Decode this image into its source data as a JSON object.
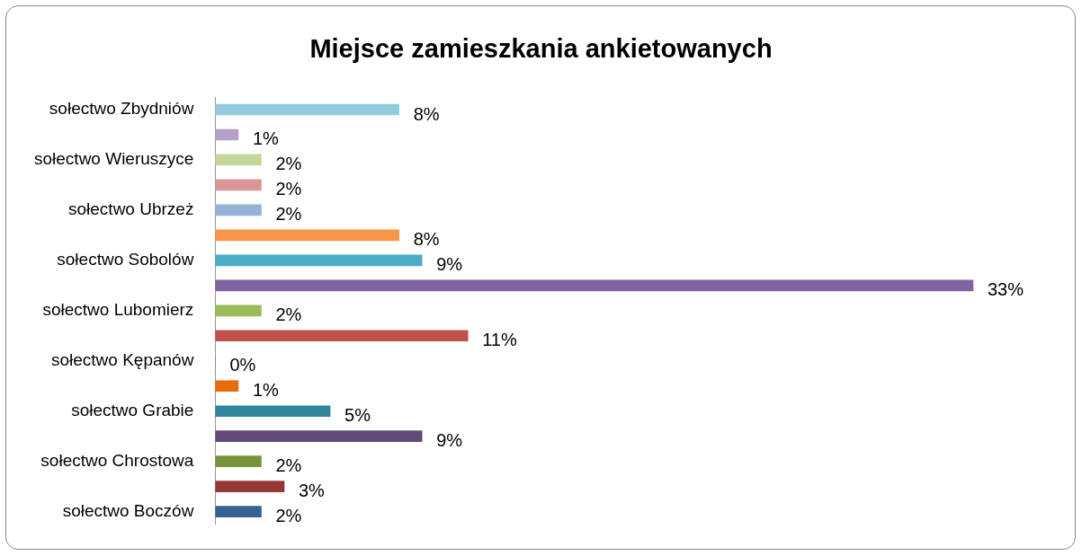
{
  "chart_data": {
    "type": "bar",
    "orientation": "horizontal",
    "title": "Miejsce zamieszkania ankietowanych",
    "categories": [
      "sołectwo Zbydniów",
      null,
      "sołectwo Wieruszyce",
      null,
      "sołectwo Ubrzeż",
      null,
      "sołectwo Sobolów",
      null,
      "sołectwo Lubomierz",
      null,
      "sołectwo Kępanów",
      null,
      "sołectwo Grabie",
      null,
      "sołectwo Chrostowa",
      null,
      "sołectwo Boczów"
    ],
    "values": [
      8,
      1,
      2,
      2,
      2,
      8,
      9,
      33,
      2,
      11,
      0,
      1,
      5,
      9,
      2,
      3,
      2
    ],
    "colors": [
      "#93cddd",
      "#b3a2c7",
      "#c3d69b",
      "#d99694",
      "#95b3d7",
      "#f79646",
      "#4bacc6",
      "#8064a2",
      "#9bbb59",
      "#c0504d",
      "#4f81bd",
      "#e46c0a",
      "#31859c",
      "#604a7b",
      "#77933c",
      "#953735",
      "#376092"
    ],
    "value_labels": [
      "8%",
      "1%",
      "2%",
      "2%",
      "2%",
      "8%",
      "9%",
      "33%",
      "2%",
      "11%",
      "0%",
      "1%",
      "5%",
      "9%",
      "2%",
      "3%",
      "2%"
    ],
    "legend": false
  }
}
